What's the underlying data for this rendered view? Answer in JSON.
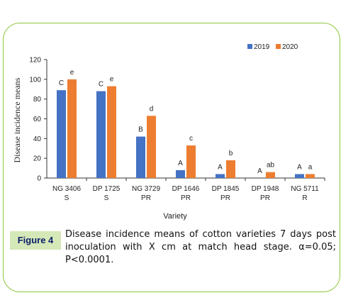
{
  "chart_data": {
    "type": "bar",
    "xlabel": "Variety",
    "ylabel": "Disease incidence means",
    "ylim": [
      0,
      120
    ],
    "yticks": [
      0,
      20,
      40,
      60,
      80,
      100,
      120
    ],
    "grid": false,
    "legend_position": "top-right",
    "categories": [
      [
        "NG 3406",
        "S"
      ],
      [
        "DP 1725",
        "S"
      ],
      [
        "NG 3729",
        "PR"
      ],
      [
        "DP 1646",
        "PR"
      ],
      [
        "DP 1845",
        "PR"
      ],
      [
        "DP 1948",
        "PR"
      ],
      [
        "NG 5711",
        "R"
      ]
    ],
    "series": [
      {
        "name": "2019",
        "color": "#4472c4",
        "values": [
          89,
          88,
          42,
          8,
          4,
          0,
          4
        ],
        "labels": [
          "C",
          "C",
          "B",
          "A",
          "A",
          "A",
          "A"
        ]
      },
      {
        "name": "2020",
        "color": "#ed7d31",
        "values": [
          100,
          93,
          63,
          33,
          18,
          6,
          4
        ],
        "labels": [
          "e",
          "e",
          "d",
          "c",
          "b",
          "ab",
          "a"
        ]
      }
    ]
  },
  "caption": {
    "label": "Figure 4",
    "text": "Disease incidence means of cotton varieties 7 days post inoculation with X cm at match head stage. α=0.05; P<0.0001."
  }
}
